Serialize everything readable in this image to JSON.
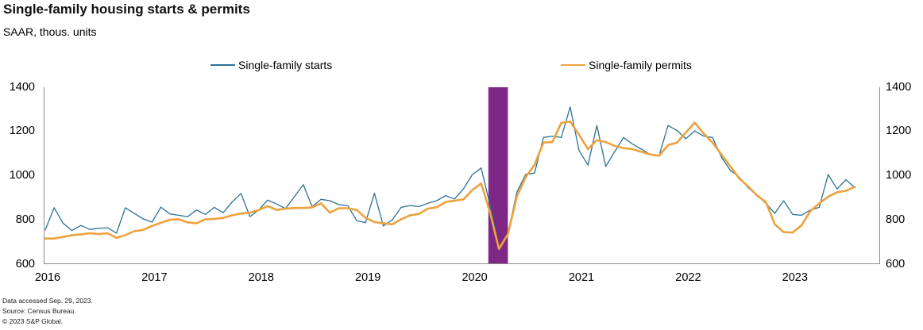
{
  "title": "Single-family  housing starts & permits",
  "subtitle": "SAAR, thous. units",
  "legend": [
    {
      "label": "Single-family starts",
      "color": "#2B7295",
      "thickness": 1.5
    },
    {
      "label": "Single-family permits",
      "color": "#ECA23D",
      "thickness": 2.5
    }
  ],
  "footer": [
    "Data accessed Sep. 29, 2023.",
    "Source: Census Bureau.",
    "© 2023 S&P Global."
  ],
  "colors": {
    "axis": "#8c8c8c",
    "recession_band": "#7C2884",
    "starts_line": "#2B7295",
    "permits_line": "#ECA23D"
  },
  "chart_data": {
    "type": "line",
    "title": "Single-family  housing starts & permits",
    "ylabel": "SAAR, thous. units",
    "ylim": [
      600,
      1400
    ],
    "y_ticks": [
      600,
      800,
      1000,
      1200,
      1400
    ],
    "y_axis_sides": "both",
    "grid": false,
    "legend_position": "top",
    "x_monthly_range": {
      "start": "2016-01",
      "end": "2023-08"
    },
    "x_tick_labels": [
      "2016",
      "2017",
      "2018",
      "2019",
      "2020",
      "2021",
      "2022",
      "2023"
    ],
    "recession_band": {
      "from_month": "2020-02",
      "to_month": "2020-04",
      "span_month_indices": [
        49.8,
        52.0
      ],
      "color": "#7C2884"
    },
    "series": [
      {
        "name": "Single-family starts",
        "color": "#2B7295",
        "line_width": 1.3,
        "values": [
          755,
          855,
          785,
          752,
          775,
          757,
          762,
          765,
          740,
          855,
          830,
          805,
          790,
          858,
          827,
          821,
          815,
          845,
          825,
          857,
          833,
          881,
          920,
          815,
          845,
          890,
          872,
          851,
          905,
          960,
          860,
          893,
          887,
          869,
          865,
          797,
          788,
          921,
          773,
          800,
          857,
          865,
          860,
          875,
          887,
          910,
          895,
          940,
          1005,
          1035,
          865,
          672,
          740,
          925,
          1006,
          1012,
          1173,
          1179,
          1173,
          1311,
          1114,
          1048,
          1227,
          1042,
          1108,
          1173,
          1143,
          1120,
          1096,
          1090,
          1227,
          1205,
          1167,
          1203,
          1179,
          1173,
          1084,
          1024,
          994,
          946,
          911,
          875,
          830,
          887,
          825,
          821,
          845,
          857,
          1005,
          940,
          982,
          946
        ]
      },
      {
        "name": "Single-family permits",
        "color": "#ECA23D",
        "line_width": 2.6,
        "values": [
          716,
          716,
          723,
          731,
          735,
          740,
          736,
          740,
          719,
          731,
          749,
          755,
          773,
          787,
          801,
          803,
          789,
          785,
          803,
          805,
          809,
          821,
          829,
          833,
          845,
          863,
          845,
          851,
          854,
          854,
          857,
          875,
          833,
          853,
          853,
          845,
          810,
          790,
          785,
          780,
          803,
          821,
          827,
          851,
          857,
          881,
          887,
          893,
          935,
          965,
          832,
          669,
          735,
          905,
          994,
          1050,
          1150,
          1152,
          1239,
          1245,
          1185,
          1120,
          1161,
          1152,
          1135,
          1125,
          1120,
          1108,
          1096,
          1090,
          1138,
          1150,
          1195,
          1240,
          1191,
          1150,
          1096,
          1042,
          988,
          952,
          911,
          881,
          780,
          745,
          743,
          775,
          840,
          875,
          905,
          925,
          932,
          950
        ]
      }
    ]
  }
}
